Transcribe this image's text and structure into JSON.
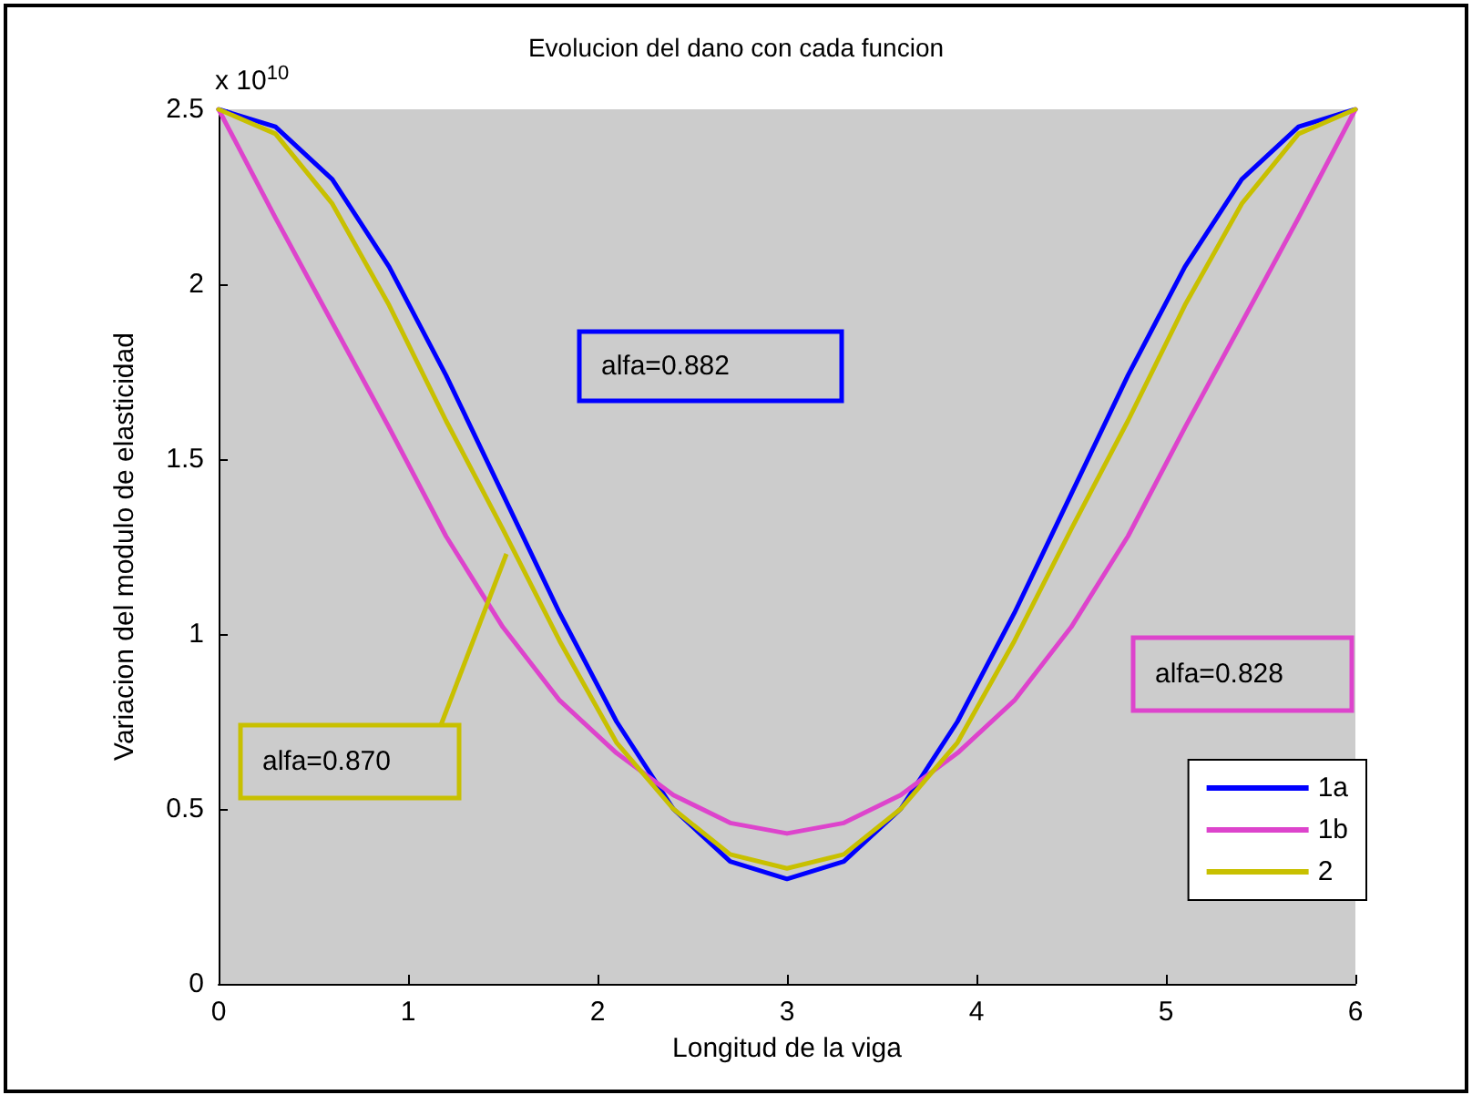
{
  "chart_data": {
    "type": "line",
    "title": "Evolucion del dano con cada funcion",
    "xlabel": "Longitud de la viga",
    "ylabel": "Variacion del modulo de elasticidad",
    "x": [
      0,
      0.3,
      0.6,
      0.9,
      1.2,
      1.5,
      1.8,
      2.1,
      2.4,
      2.7,
      3.0,
      3.3,
      3.6,
      3.9,
      4.2,
      4.5,
      4.8,
      5.1,
      5.4,
      5.7,
      6.0
    ],
    "series": [
      {
        "name": "1a",
        "color": "#0000ff",
        "values": [
          2.5,
          2.45,
          2.3,
          2.05,
          1.74,
          1.4,
          1.06,
          0.75,
          0.5,
          0.35,
          0.3,
          0.35,
          0.5,
          0.75,
          1.06,
          1.4,
          1.74,
          2.05,
          2.3,
          2.45,
          2.5
        ]
      },
      {
        "name": "1b",
        "color": "#dd44cc",
        "values": [
          2.5,
          2.19,
          1.89,
          1.59,
          1.28,
          1.02,
          0.81,
          0.66,
          0.54,
          0.46,
          0.43,
          0.46,
          0.54,
          0.66,
          0.81,
          1.02,
          1.28,
          1.59,
          1.89,
          2.19,
          2.5
        ]
      },
      {
        "name": "2",
        "color": "#c8c000",
        "values": [
          2.5,
          2.43,
          2.23,
          1.94,
          1.61,
          1.3,
          0.98,
          0.69,
          0.5,
          0.37,
          0.33,
          0.37,
          0.5,
          0.69,
          0.98,
          1.3,
          1.61,
          1.94,
          2.23,
          2.43,
          2.5
        ]
      }
    ],
    "xlim": [
      0,
      6
    ],
    "xticks": [
      0,
      1,
      2,
      3,
      4,
      5,
      6
    ],
    "ylim": [
      0,
      2.5
    ],
    "yticks": [
      0,
      0.5,
      1,
      1.5,
      2,
      2.5
    ],
    "annotations": [
      "x 10$^{10}$",
      "alfa=0.882",
      "alfa=0.870",
      "alfa=0.828"
    ],
    "legend": "bottom right",
    "grid": false,
    "marker": "none",
    "line_style": "solid"
  }
}
